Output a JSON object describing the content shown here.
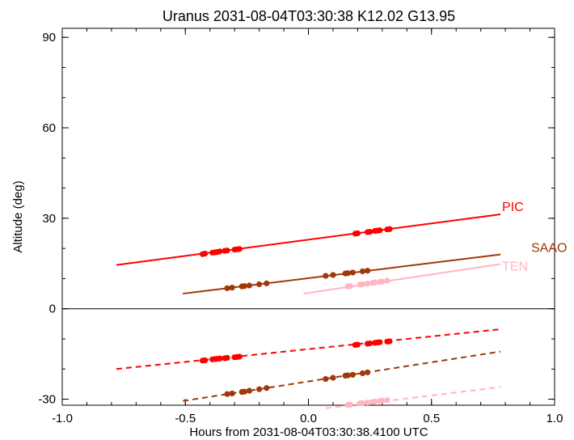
{
  "chart_data": {
    "type": "line",
    "title": "Uranus 2031-08-04T03:30:38  K12.02  G13.95",
    "xlabel": "Hours from 2031-08-04T03:30:38.4100 UTC",
    "ylabel": "Altitude (deg)",
    "xlim": [
      -1.0,
      1.0
    ],
    "ylim": [
      -32,
      93
    ],
    "x_ticks": [
      "-1.0",
      "-0.5",
      "0.0",
      "0.5",
      "1.0"
    ],
    "y_ticks": [
      "-30",
      "0",
      "30",
      "60",
      "90"
    ],
    "zero_line": 0,
    "grid": false,
    "series": [
      {
        "name": "PIC",
        "color": "#ff0000",
        "label_color": "#ff0000",
        "solid": [
          [
            -0.78,
            14.5
          ],
          [
            0.78,
            31.3
          ]
        ],
        "dashed": [
          [
            -0.78,
            -20.0
          ],
          [
            0.78,
            -6.8
          ]
        ],
        "points_upper": [
          [
            -0.43,
            18.1
          ],
          [
            -0.42,
            18.3
          ],
          [
            -0.39,
            18.6
          ],
          [
            -0.38,
            18.7
          ],
          [
            -0.37,
            18.8
          ],
          [
            -0.36,
            19.0
          ],
          [
            -0.34,
            19.2
          ],
          [
            -0.33,
            19.3
          ],
          [
            -0.3,
            19.6
          ],
          [
            -0.29,
            19.7
          ],
          [
            -0.28,
            19.8
          ],
          [
            0.19,
            24.9
          ],
          [
            0.2,
            25.0
          ],
          [
            0.24,
            25.4
          ],
          [
            0.25,
            25.5
          ],
          [
            0.27,
            25.8
          ],
          [
            0.28,
            25.9
          ],
          [
            0.29,
            26.0
          ],
          [
            0.32,
            26.3
          ],
          [
            0.33,
            26.4
          ]
        ],
        "points_lower": [
          [
            -0.43,
            -17.2
          ],
          [
            -0.42,
            -17.1
          ],
          [
            -0.39,
            -16.8
          ],
          [
            -0.38,
            -16.7
          ],
          [
            -0.37,
            -16.6
          ],
          [
            -0.36,
            -16.5
          ],
          [
            -0.34,
            -16.4
          ],
          [
            -0.33,
            -16.3
          ],
          [
            -0.3,
            -16.1
          ],
          [
            -0.29,
            -16.0
          ],
          [
            -0.28,
            -15.9
          ],
          [
            0.19,
            -12.0
          ],
          [
            0.2,
            -11.9
          ],
          [
            0.24,
            -11.6
          ],
          [
            0.25,
            -11.5
          ],
          [
            0.27,
            -11.3
          ],
          [
            0.28,
            -11.2
          ],
          [
            0.29,
            -11.1
          ],
          [
            0.32,
            -10.9
          ],
          [
            0.33,
            -10.8
          ]
        ]
      },
      {
        "name": "SAAO",
        "color": "#a0380a",
        "label_color": "#a0380a",
        "solid": [
          [
            -0.51,
            5.0
          ],
          [
            0.78,
            18.0
          ]
        ],
        "dashed": [
          [
            -0.51,
            -30.6
          ],
          [
            0.78,
            -14.2
          ]
        ],
        "points_upper": [
          [
            -0.33,
            6.8
          ],
          [
            -0.31,
            7.0
          ],
          [
            -0.27,
            7.4
          ],
          [
            -0.26,
            7.5
          ],
          [
            -0.24,
            7.7
          ],
          [
            -0.2,
            8.1
          ],
          [
            -0.17,
            8.4
          ],
          [
            0.07,
            10.9
          ],
          [
            0.1,
            11.2
          ],
          [
            0.15,
            11.7
          ],
          [
            0.16,
            11.8
          ],
          [
            0.18,
            12.0
          ],
          [
            0.22,
            12.4
          ],
          [
            0.24,
            12.6
          ]
        ],
        "points_lower": [
          [
            -0.33,
            -28.3
          ],
          [
            -0.31,
            -28.1
          ],
          [
            -0.27,
            -27.6
          ],
          [
            -0.26,
            -27.5
          ],
          [
            -0.24,
            -27.2
          ],
          [
            -0.2,
            -26.7
          ],
          [
            -0.17,
            -26.3
          ],
          [
            0.07,
            -23.3
          ],
          [
            0.1,
            -22.9
          ],
          [
            0.15,
            -22.2
          ],
          [
            0.16,
            -22.1
          ],
          [
            0.18,
            -21.9
          ],
          [
            0.22,
            -21.4
          ],
          [
            0.24,
            -21.1
          ]
        ]
      },
      {
        "name": "TEN",
        "color": "#ffb6c1",
        "label_color": "#ffb6c1",
        "solid": [
          [
            -0.02,
            5.0
          ],
          [
            0.78,
            14.8
          ]
        ],
        "dashed": [
          [
            0.07,
            -33.0
          ],
          [
            0.78,
            -26.0
          ]
        ],
        "points_upper": [
          [
            0.16,
            7.4
          ],
          [
            0.17,
            7.5
          ],
          [
            0.21,
            8.0
          ],
          [
            0.22,
            8.1
          ],
          [
            0.24,
            8.3
          ],
          [
            0.26,
            8.6
          ],
          [
            0.27,
            8.7
          ],
          [
            0.29,
            8.9
          ],
          [
            0.3,
            9.0
          ],
          [
            0.32,
            9.3
          ]
        ],
        "points_lower": [
          [
            0.16,
            -31.9
          ],
          [
            0.17,
            -31.8
          ],
          [
            0.21,
            -31.4
          ],
          [
            0.22,
            -31.3
          ],
          [
            0.24,
            -31.1
          ],
          [
            0.26,
            -30.9
          ],
          [
            0.27,
            -30.8
          ],
          [
            0.29,
            -30.6
          ],
          [
            0.3,
            -30.5
          ],
          [
            0.32,
            -30.3
          ]
        ]
      }
    ]
  }
}
